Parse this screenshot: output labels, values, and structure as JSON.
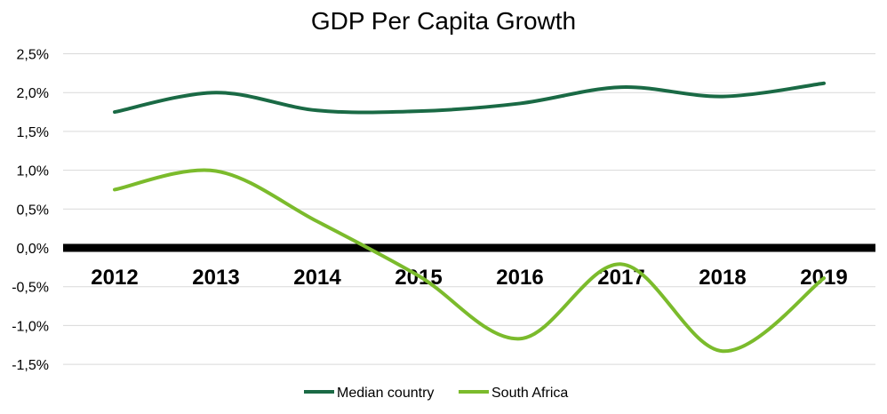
{
  "chart_data": {
    "type": "line",
    "title": "GDP Per Capita Growth",
    "xlabel": "",
    "ylabel": "",
    "categories": [
      "2012",
      "2013",
      "2014",
      "2015",
      "2016",
      "2017",
      "2018",
      "2019"
    ],
    "series": [
      {
        "name": "Median country",
        "color": "#1a6a45",
        "values": [
          1.75,
          2.0,
          1.77,
          1.76,
          1.86,
          2.07,
          1.95,
          2.12
        ]
      },
      {
        "name": "South Africa",
        "color": "#7bbb2c",
        "values": [
          0.75,
          0.99,
          0.34,
          -0.36,
          -1.17,
          -0.21,
          -1.33,
          -0.39
        ]
      }
    ],
    "ylim": [
      -1.5,
      2.5
    ],
    "yticks": [
      "-1,5%",
      "-1,0%",
      "-0,5%",
      "0,0%",
      "0,5%",
      "1,0%",
      "1,5%",
      "2,0%",
      "2,5%"
    ],
    "ytick_values": [
      -1.5,
      -1.0,
      -0.5,
      0,
      0.5,
      1.0,
      1.5,
      2.0,
      2.5
    ],
    "grid": true,
    "legend_position": "bottom"
  }
}
